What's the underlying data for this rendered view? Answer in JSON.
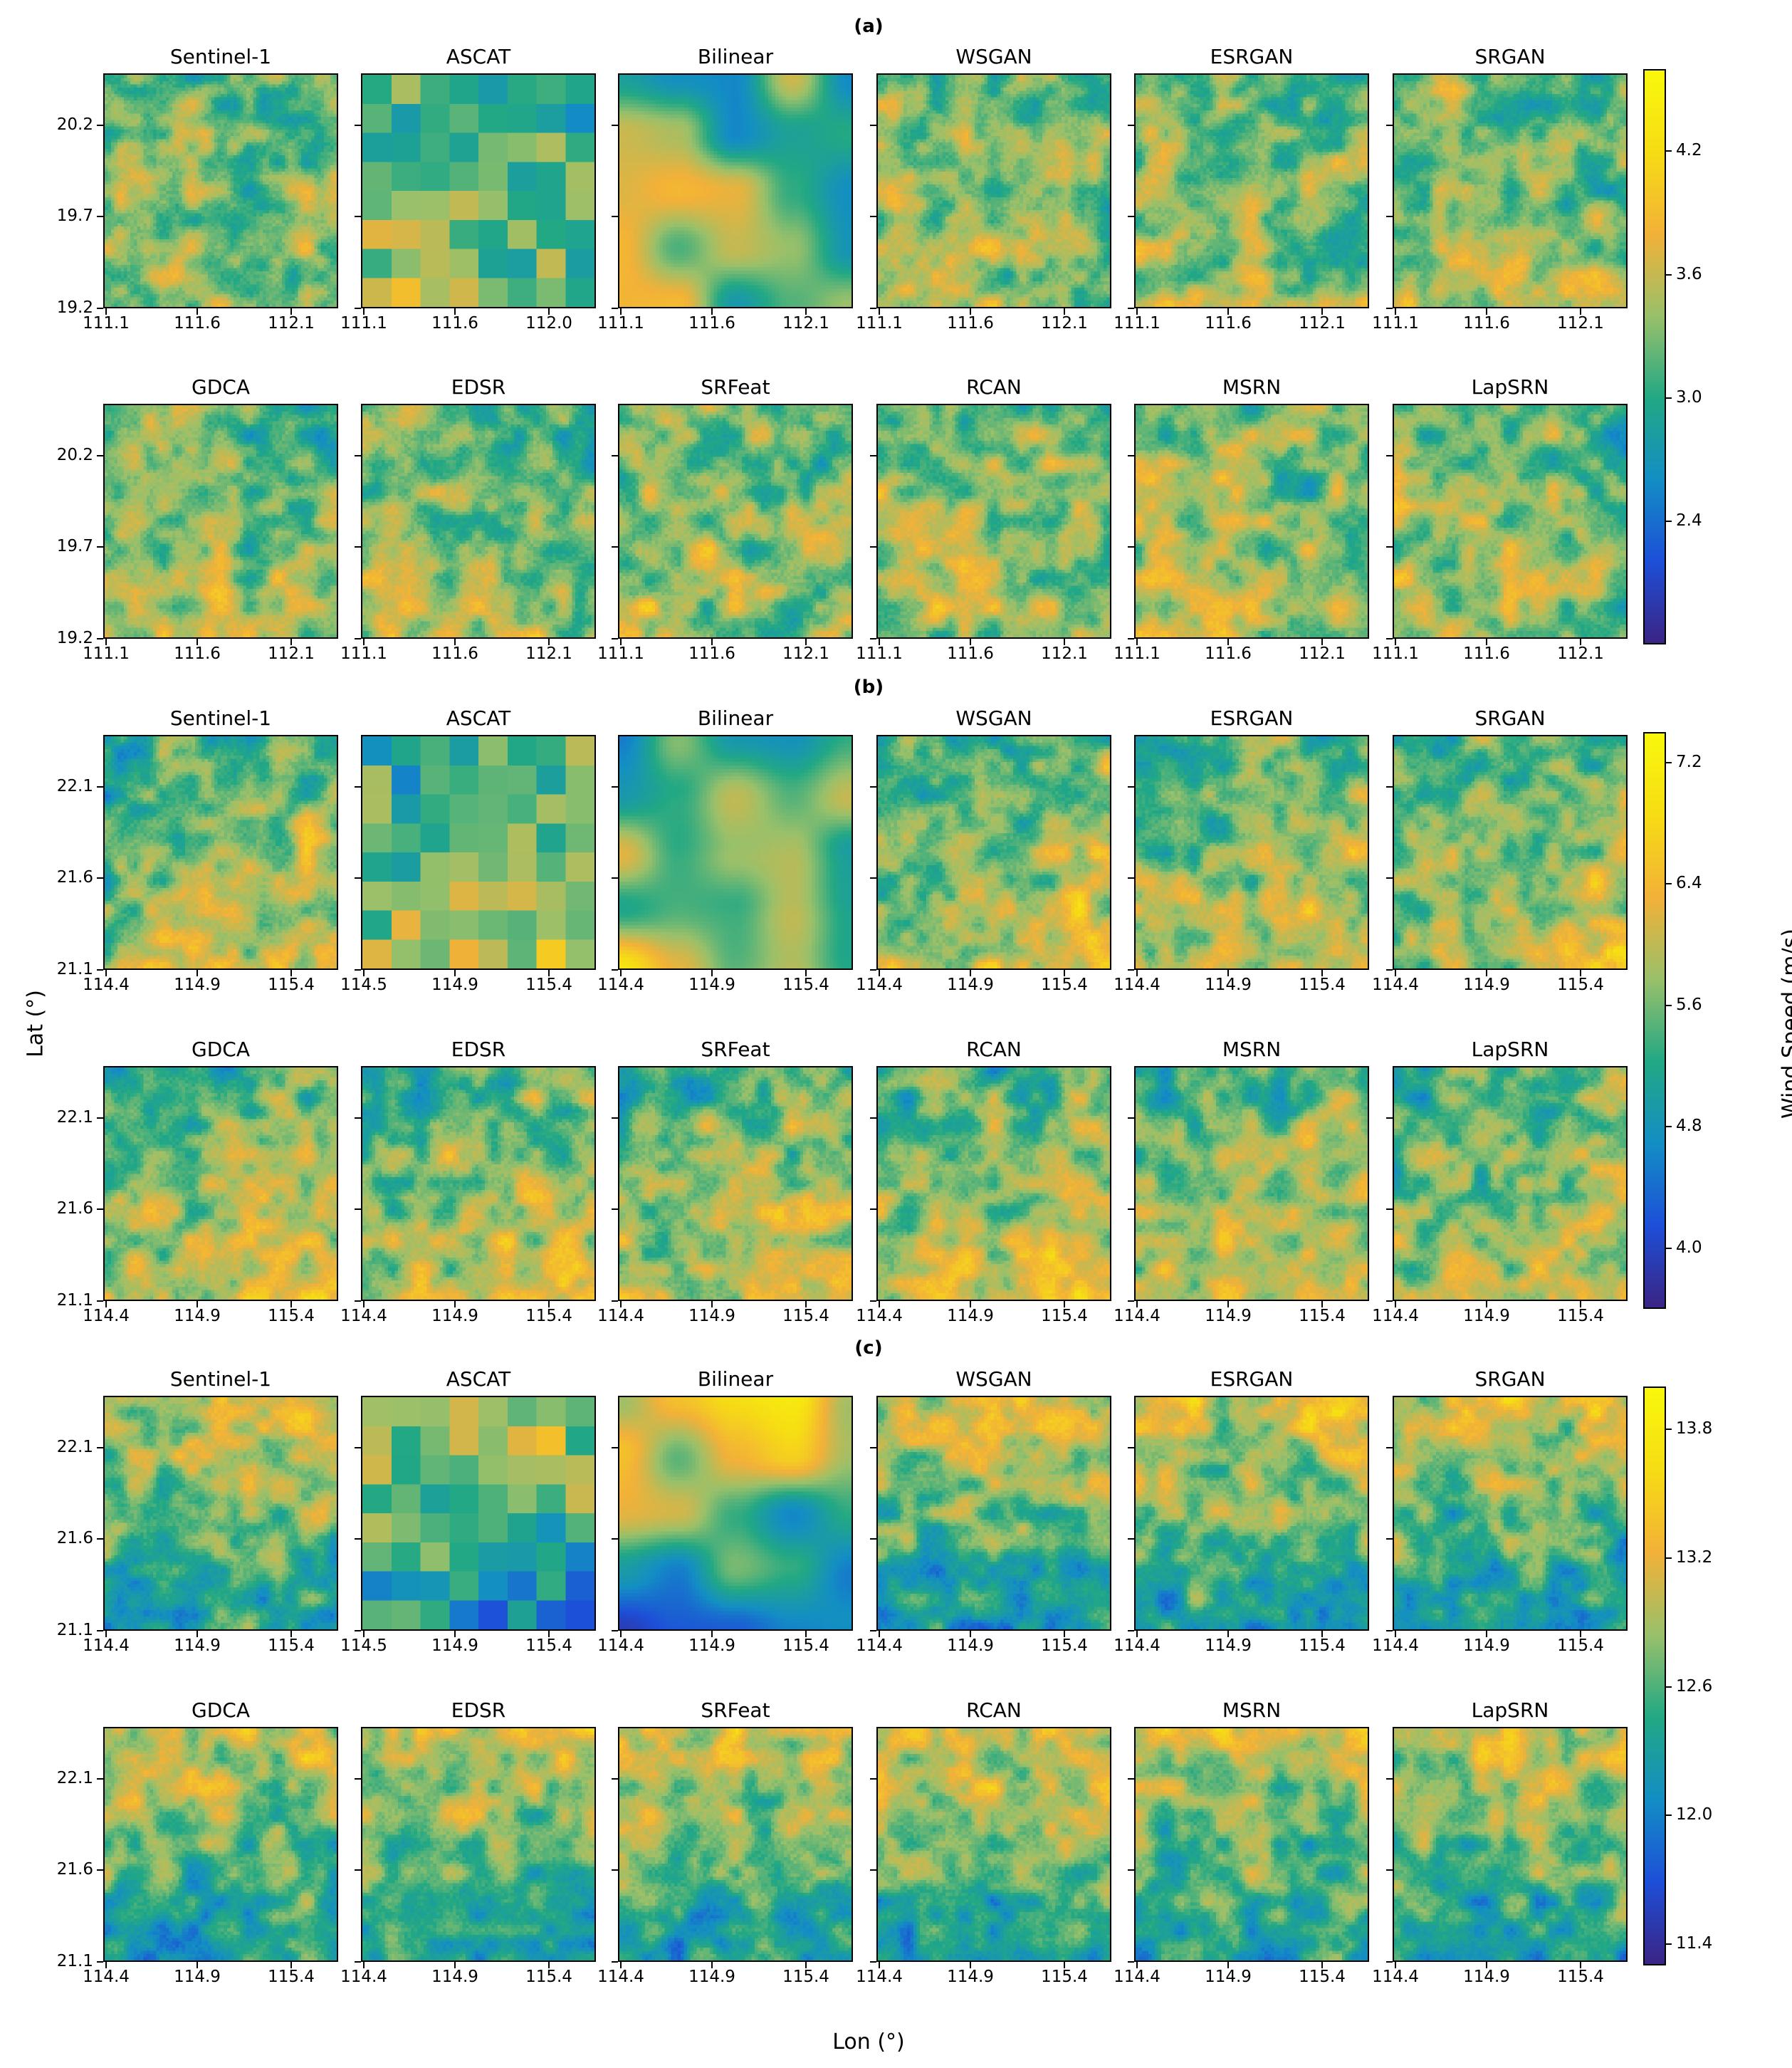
{
  "figure": {
    "xlabel": "Lon (°)",
    "ylabel": "Lat (°)",
    "colorbar_label": "Wind Speed (m/s)"
  },
  "colormap": [
    "#3b2484",
    "#1d4fd8",
    "#138ec4",
    "#22a884",
    "#99c06a",
    "#f2b138",
    "#f6dc14",
    "#f9f80c"
  ],
  "chart_data": [
    {
      "section": "(a)",
      "type": "heatmap",
      "clim": [
        1.8,
        4.6
      ],
      "colorbar_ticks": [
        2.4,
        3.0,
        3.6,
        4.2
      ],
      "panels": [
        {
          "title": "Sentinel-1",
          "xticks": [
            "111.1",
            "111.6",
            "112.1"
          ],
          "yticks": [
            "20.2",
            "19.7",
            "19.2"
          ]
        },
        {
          "title": "ASCAT",
          "xticks": [
            "111.1",
            "111.6",
            "112.0"
          ],
          "yticks": []
        },
        {
          "title": "Bilinear",
          "xticks": [
            "111.1",
            "111.6",
            "112.1"
          ],
          "yticks": []
        },
        {
          "title": "WSGAN",
          "xticks": [
            "111.1",
            "111.6",
            "112.1"
          ],
          "yticks": []
        },
        {
          "title": "ESRGAN",
          "xticks": [
            "111.1",
            "111.6",
            "112.1"
          ],
          "yticks": []
        },
        {
          "title": "SRGAN",
          "xticks": [
            "111.1",
            "111.6",
            "112.1"
          ],
          "yticks": []
        },
        {
          "title": "GDCA",
          "xticks": [
            "111.1",
            "111.6",
            "112.1"
          ],
          "yticks": [
            "20.2",
            "19.7",
            "19.2"
          ]
        },
        {
          "title": "EDSR",
          "xticks": [
            "111.1",
            "111.6",
            "112.1"
          ],
          "yticks": []
        },
        {
          "title": "SRFeat",
          "xticks": [
            "111.1",
            "111.6",
            "112.1"
          ],
          "yticks": []
        },
        {
          "title": "RCAN",
          "xticks": [
            "111.1",
            "111.6",
            "112.1"
          ],
          "yticks": []
        },
        {
          "title": "MSRN",
          "xticks": [
            "111.1",
            "111.6",
            "112.1"
          ],
          "yticks": []
        },
        {
          "title": "LapSRN",
          "xticks": [
            "111.1",
            "111.6",
            "112.1"
          ],
          "yticks": []
        }
      ]
    },
    {
      "section": "(b)",
      "type": "heatmap",
      "clim": [
        3.6,
        7.4
      ],
      "colorbar_ticks": [
        4.0,
        4.8,
        5.6,
        6.4,
        7.2
      ],
      "panels": [
        {
          "title": "Sentinel-1",
          "xticks": [
            "114.4",
            "114.9",
            "115.4"
          ],
          "yticks": [
            "22.1",
            "21.6",
            "21.1"
          ]
        },
        {
          "title": "ASCAT",
          "xticks": [
            "114.5",
            "114.9",
            "115.4"
          ],
          "yticks": []
        },
        {
          "title": "Bilinear",
          "xticks": [
            "114.4",
            "114.9",
            "115.4"
          ],
          "yticks": []
        },
        {
          "title": "WSGAN",
          "xticks": [
            "114.4",
            "114.9",
            "115.4"
          ],
          "yticks": []
        },
        {
          "title": "ESRGAN",
          "xticks": [
            "114.4",
            "114.9",
            "115.4"
          ],
          "yticks": []
        },
        {
          "title": "SRGAN",
          "xticks": [
            "114.4",
            "114.9",
            "115.4"
          ],
          "yticks": []
        },
        {
          "title": "GDCA",
          "xticks": [
            "114.4",
            "114.9",
            "115.4"
          ],
          "yticks": [
            "22.1",
            "21.6",
            "21.1"
          ]
        },
        {
          "title": "EDSR",
          "xticks": [
            "114.4",
            "114.9",
            "115.4"
          ],
          "yticks": []
        },
        {
          "title": "SRFeat",
          "xticks": [
            "114.4",
            "114.9",
            "115.4"
          ],
          "yticks": []
        },
        {
          "title": "RCAN",
          "xticks": [
            "114.4",
            "114.9",
            "115.4"
          ],
          "yticks": []
        },
        {
          "title": "MSRN",
          "xticks": [
            "114.4",
            "114.9",
            "115.4"
          ],
          "yticks": []
        },
        {
          "title": "LapSRN",
          "xticks": [
            "114.4",
            "114.9",
            "115.4"
          ],
          "yticks": []
        }
      ]
    },
    {
      "section": "(c)",
      "type": "heatmap",
      "clim": [
        11.3,
        14.0
      ],
      "colorbar_ticks": [
        11.4,
        12.0,
        12.6,
        13.2,
        13.8
      ],
      "panels": [
        {
          "title": "Sentinel-1",
          "xticks": [
            "114.4",
            "114.9",
            "115.4"
          ],
          "yticks": [
            "22.1",
            "21.6",
            "21.1"
          ]
        },
        {
          "title": "ASCAT",
          "xticks": [
            "114.5",
            "114.9",
            "115.4"
          ],
          "yticks": []
        },
        {
          "title": "Bilinear",
          "xticks": [
            "114.4",
            "114.9",
            "115.4"
          ],
          "yticks": []
        },
        {
          "title": "WSGAN",
          "xticks": [
            "114.4",
            "114.9",
            "115.4"
          ],
          "yticks": []
        },
        {
          "title": "ESRGAN",
          "xticks": [
            "114.4",
            "114.9",
            "115.4"
          ],
          "yticks": []
        },
        {
          "title": "SRGAN",
          "xticks": [
            "114.4",
            "114.9",
            "115.4"
          ],
          "yticks": []
        },
        {
          "title": "GDCA",
          "xticks": [
            "114.4",
            "114.9",
            "115.4"
          ],
          "yticks": [
            "22.1",
            "21.6",
            "21.1"
          ]
        },
        {
          "title": "EDSR",
          "xticks": [
            "114.4",
            "114.9",
            "115.4"
          ],
          "yticks": []
        },
        {
          "title": "SRFeat",
          "xticks": [
            "114.4",
            "114.9",
            "115.4"
          ],
          "yticks": []
        },
        {
          "title": "RCAN",
          "xticks": [
            "114.4",
            "114.9",
            "115.4"
          ],
          "yticks": []
        },
        {
          "title": "MSRN",
          "xticks": [
            "114.4",
            "114.9",
            "115.4"
          ],
          "yticks": []
        },
        {
          "title": "LapSRN",
          "xticks": [
            "114.4",
            "114.9",
            "115.4"
          ],
          "yticks": []
        }
      ]
    }
  ]
}
